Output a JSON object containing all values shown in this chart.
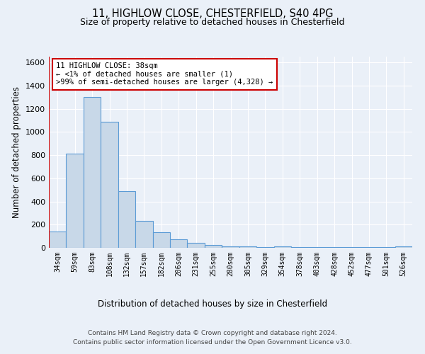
{
  "title1": "11, HIGHLOW CLOSE, CHESTERFIELD, S40 4PG",
  "title2": "Size of property relative to detached houses in Chesterfield",
  "xlabel": "Distribution of detached houses by size in Chesterfield",
  "ylabel": "Number of detached properties",
  "bin_labels": [
    "34sqm",
    "59sqm",
    "83sqm",
    "108sqm",
    "132sqm",
    "157sqm",
    "182sqm",
    "206sqm",
    "231sqm",
    "255sqm",
    "280sqm",
    "305sqm",
    "329sqm",
    "354sqm",
    "378sqm",
    "403sqm",
    "428sqm",
    "452sqm",
    "477sqm",
    "501sqm",
    "526sqm"
  ],
  "bar_values": [
    140,
    810,
    1300,
    1090,
    490,
    235,
    135,
    75,
    40,
    25,
    15,
    10,
    5,
    15,
    5,
    5,
    5,
    5,
    5,
    5,
    15
  ],
  "bar_color": "#c8d8e8",
  "bar_edge_color": "#5b9bd5",
  "highlight_color": "#cc0000",
  "annotation_text": "11 HIGHLOW CLOSE: 38sqm\n← <1% of detached houses are smaller (1)\n>99% of semi-detached houses are larger (4,328) →",
  "annotation_box_color": "#ffffff",
  "annotation_box_edge": "#cc0000",
  "ylim": [
    0,
    1650
  ],
  "yticks": [
    0,
    200,
    400,
    600,
    800,
    1000,
    1200,
    1400,
    1600
  ],
  "footer1": "Contains HM Land Registry data © Crown copyright and database right 2024.",
  "footer2": "Contains public sector information licensed under the Open Government Licence v3.0.",
  "bg_color": "#eaf0f8",
  "plot_bg_color": "#eaf0f8"
}
